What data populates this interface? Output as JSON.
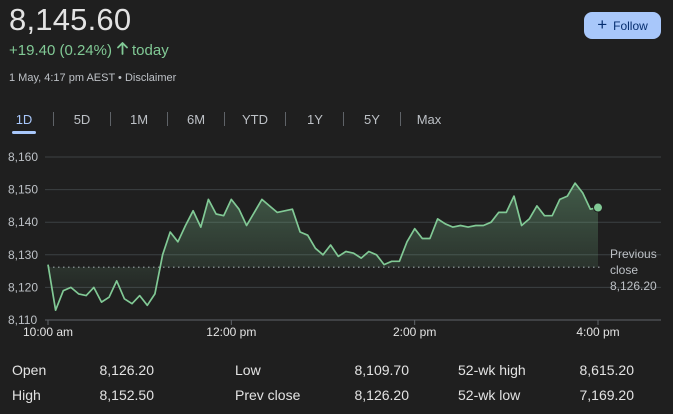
{
  "header": {
    "price": "8,145.60",
    "change": "+19.40 (0.24%)",
    "change_period": "today",
    "timestamp": "1 May, 4:17 pm AEST",
    "separator": "•",
    "disclaimer": "Disclaimer",
    "follow_label": "Follow",
    "up_color": "#81c995"
  },
  "tabs": [
    {
      "label": "1D",
      "active": true
    },
    {
      "label": "5D",
      "active": false
    },
    {
      "label": "1M",
      "active": false
    },
    {
      "label": "6M",
      "active": false
    },
    {
      "label": "YTD",
      "active": false
    },
    {
      "label": "1Y",
      "active": false
    },
    {
      "label": "5Y",
      "active": false
    },
    {
      "label": "Max",
      "active": false
    }
  ],
  "chart_data": {
    "type": "line",
    "ylim": [
      8110,
      8160
    ],
    "y_ticks": [
      "8,160",
      "8,150",
      "8,140",
      "8,130",
      "8,120",
      "8,110"
    ],
    "y_tick_values": [
      8160,
      8150,
      8140,
      8130,
      8120,
      8110
    ],
    "x_ticks": [
      "10:00 am",
      "12:00 pm",
      "2:00 pm",
      "4:00 pm"
    ],
    "x_tick_values": [
      0,
      120,
      240,
      360
    ],
    "x_range_minutes": [
      0,
      385
    ],
    "reference_line": {
      "label_line1": "Previous",
      "label_line2": "close",
      "value_label": "8,126.20",
      "value": 8126.2
    },
    "line_color": "#81c995",
    "grid": true,
    "series": [
      {
        "x": [
          0,
          5,
          10,
          15,
          20,
          25,
          30,
          35,
          40,
          45,
          50,
          55,
          60,
          65,
          70,
          75,
          80,
          85,
          90,
          95,
          100,
          105,
          110,
          115,
          120,
          125,
          130,
          135,
          140,
          145,
          150,
          155,
          160,
          165,
          170,
          175,
          180,
          185,
          190,
          195,
          200,
          205,
          210,
          215,
          220,
          225,
          230,
          235,
          240,
          245,
          250,
          255,
          260,
          265,
          270,
          275,
          280,
          285,
          290,
          295,
          300,
          305,
          310,
          315,
          320,
          325,
          330,
          335,
          340,
          345,
          350,
          355,
          360
        ],
        "y": [
          8127,
          8113,
          8119,
          8120,
          8118,
          8117.5,
          8120,
          8115.5,
          8117,
          8122,
          8116.5,
          8115,
          8117.5,
          8114.5,
          8118,
          8130,
          8137,
          8134,
          8139,
          8143.5,
          8138.5,
          8147,
          8142.5,
          8142,
          8147,
          8144,
          8139,
          8143,
          8147,
          8145,
          8143,
          8143.5,
          8144,
          8137,
          8136,
          8132,
          8130,
          8133,
          8129.5,
          8131,
          8130.5,
          8129,
          8131,
          8130,
          8127,
          8128,
          8128,
          8134,
          8138,
          8135,
          8135,
          8141,
          8139.5,
          8138.5,
          8139,
          8138.5,
          8139,
          8139,
          8140,
          8143,
          8143,
          8148,
          8139,
          8141,
          8145,
          8142,
          8142,
          8147,
          8148,
          8152,
          8149,
          8144,
          8144.5
        ]
      }
    ],
    "last_point_marker": true
  },
  "stats": [
    [
      {
        "label": "Open",
        "value": "8,126.20"
      },
      {
        "label": "Low",
        "value": "8,109.70"
      },
      {
        "label": "52-wk high",
        "value": "8,615.20"
      }
    ],
    [
      {
        "label": "High",
        "value": "8,152.50"
      },
      {
        "label": "Prev close",
        "value": "8,126.20"
      },
      {
        "label": "52-wk low",
        "value": "7,169.20"
      }
    ]
  ]
}
